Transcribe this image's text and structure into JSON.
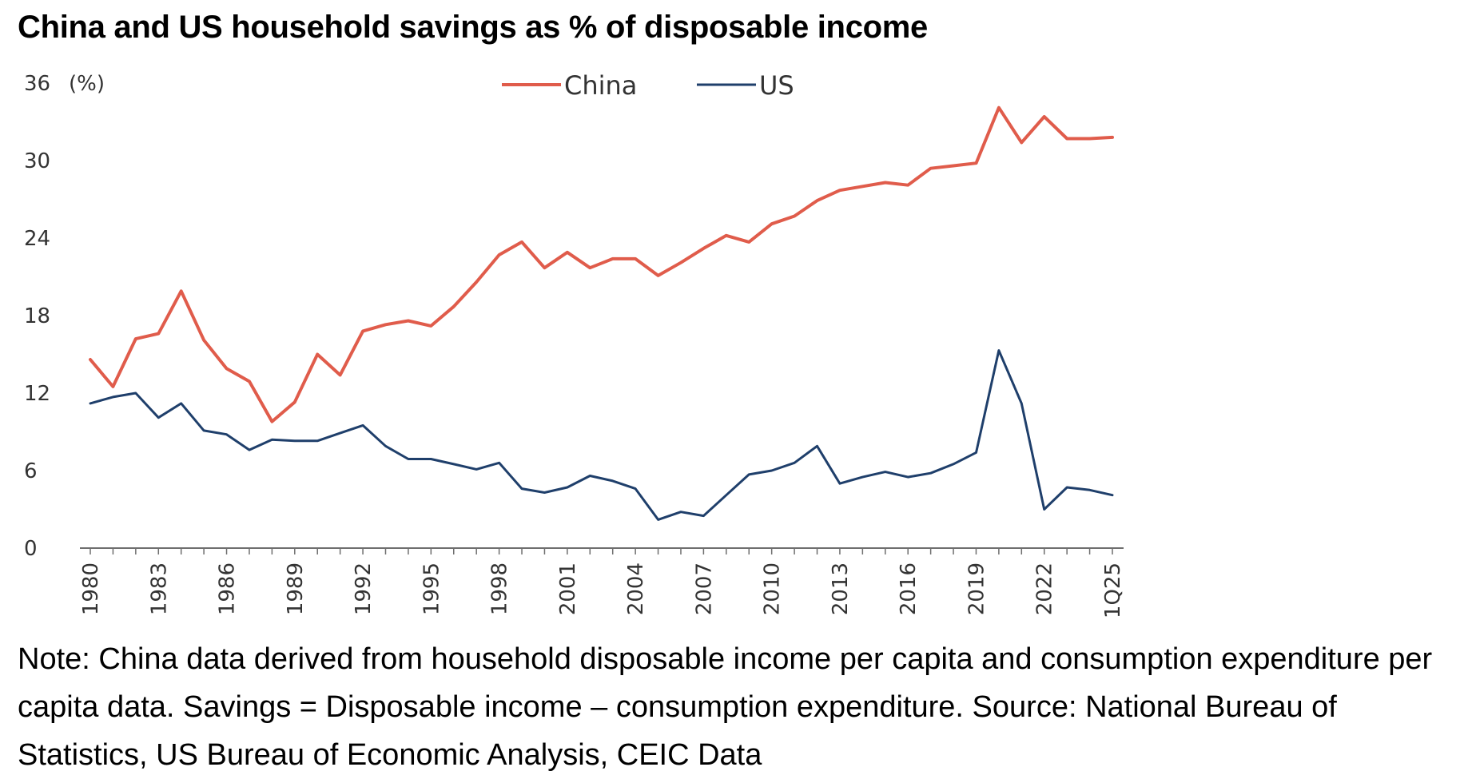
{
  "title": "China and US household savings as % of disposable income",
  "note": "Note: China data derived from household disposable income per capita and consumption expenditure per capita data. Savings = Disposable income – consumption expenditure. Source: National Bureau of Statistics, US Bureau of Economic Analysis, CEIC Data",
  "chart_data": {
    "type": "line",
    "title": "China and US household savings as % of disposable income",
    "ylabel": "(%)",
    "xlabel": "",
    "ylim": [
      0,
      36
    ],
    "yticks": [
      0,
      6,
      12,
      18,
      24,
      30,
      36
    ],
    "x": [
      "1980",
      "1981",
      "1982",
      "1983",
      "1984",
      "1985",
      "1986",
      "1987",
      "1988",
      "1989",
      "1990",
      "1991",
      "1992",
      "1993",
      "1994",
      "1995",
      "1996",
      "1997",
      "1998",
      "1999",
      "2000",
      "2001",
      "2002",
      "2003",
      "2004",
      "2005",
      "2006",
      "2007",
      "2008",
      "2009",
      "2010",
      "2011",
      "2012",
      "2013",
      "2014",
      "2015",
      "2016",
      "2017",
      "2018",
      "2019",
      "2020",
      "2021",
      "2022",
      "2023",
      "2024",
      "1Q25"
    ],
    "xticks": [
      "1980",
      "1983",
      "1986",
      "1989",
      "1992",
      "1995",
      "1998",
      "2001",
      "2004",
      "2007",
      "2010",
      "2013",
      "2016",
      "2019",
      "2022",
      "1Q25"
    ],
    "grid": false,
    "legend": "top-center",
    "series": [
      {
        "name": "China",
        "color": "#e05c4b",
        "values": [
          14.6,
          12.5,
          16.2,
          16.6,
          19.9,
          16.1,
          13.9,
          12.9,
          9.8,
          11.3,
          15.0,
          13.4,
          16.8,
          17.3,
          17.6,
          17.2,
          18.7,
          20.6,
          22.7,
          23.7,
          21.7,
          22.9,
          21.7,
          22.4,
          22.4,
          21.1,
          22.1,
          23.2,
          24.2,
          23.7,
          25.1,
          25.7,
          26.9,
          27.7,
          28.0,
          28.3,
          28.1,
          29.4,
          29.6,
          29.8,
          34.1,
          31.4,
          33.4,
          31.7,
          31.7,
          31.8
        ]
      },
      {
        "name": "US",
        "color": "#1f3f6b",
        "values": [
          11.2,
          11.7,
          12.0,
          10.1,
          11.2,
          9.1,
          8.8,
          7.6,
          8.4,
          8.3,
          8.3,
          8.9,
          9.5,
          7.9,
          6.9,
          6.9,
          6.5,
          6.1,
          6.6,
          4.6,
          4.3,
          4.7,
          5.6,
          5.2,
          4.6,
          2.2,
          2.8,
          2.5,
          4.1,
          5.7,
          6.0,
          6.6,
          7.9,
          5.0,
          5.5,
          5.9,
          5.5,
          5.8,
          6.5,
          7.4,
          15.3,
          11.2,
          3.0,
          4.7,
          4.5,
          4.1
        ]
      }
    ]
  }
}
